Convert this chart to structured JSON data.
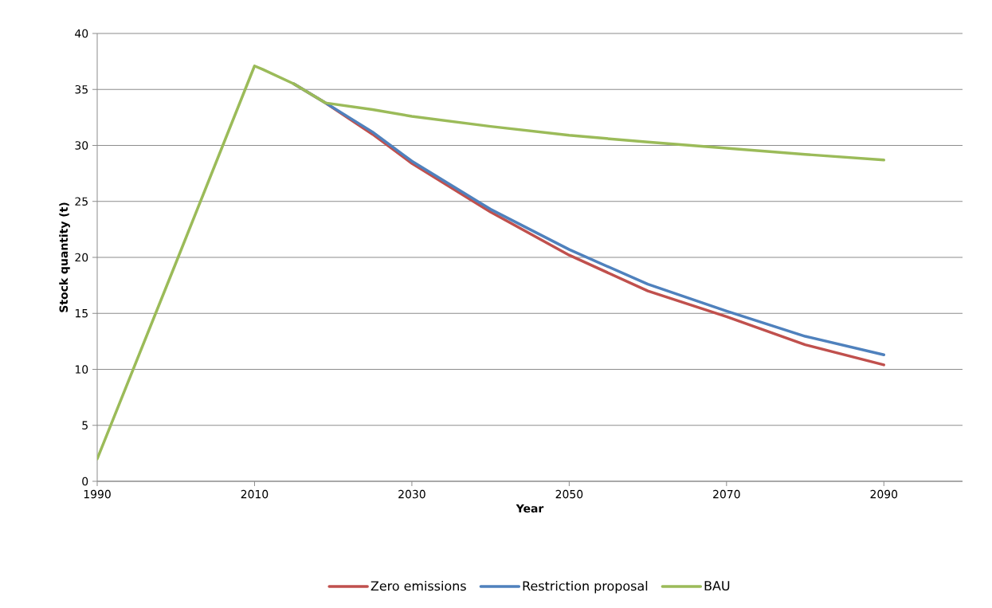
{
  "chart_data": {
    "type": "line",
    "xlabel": "Year",
    "ylabel": "Stock quantity (t)",
    "x": [
      1990,
      2000,
      2010,
      2011,
      2015,
      2019,
      2025,
      2030,
      2040,
      2050,
      2060,
      2070,
      2080,
      2090
    ],
    "series": [
      {
        "name": "Zero emissions",
        "color": "#c0504d",
        "values": [
          null,
          null,
          null,
          null,
          35.5,
          33.8,
          31.0,
          28.4,
          24.05,
          20.2,
          17.0,
          14.7,
          12.2,
          10.4
        ]
      },
      {
        "name": "Restriction proposal",
        "color": "#4f81bd",
        "values": [
          null,
          null,
          null,
          null,
          35.5,
          33.8,
          31.2,
          28.6,
          24.3,
          20.7,
          17.6,
          15.2,
          12.95,
          11.3
        ]
      },
      {
        "name": "BAU",
        "color": "#9bbb59",
        "values": [
          2.0,
          19.5,
          37.1,
          36.8,
          35.5,
          33.8,
          33.2,
          32.6,
          31.7,
          30.9,
          30.3,
          29.75,
          29.2,
          28.7
        ]
      }
    ],
    "xlim": [
      1990,
      2100
    ],
    "xticks": [
      1990,
      2010,
      2030,
      2050,
      2070,
      2090
    ],
    "ylim": [
      0,
      40
    ],
    "yticks": [
      0,
      5,
      10,
      15,
      20,
      25,
      30,
      35,
      40
    ],
    "grid": "y",
    "legend": "bottom",
    "marker": "none",
    "line_style": "solid"
  }
}
